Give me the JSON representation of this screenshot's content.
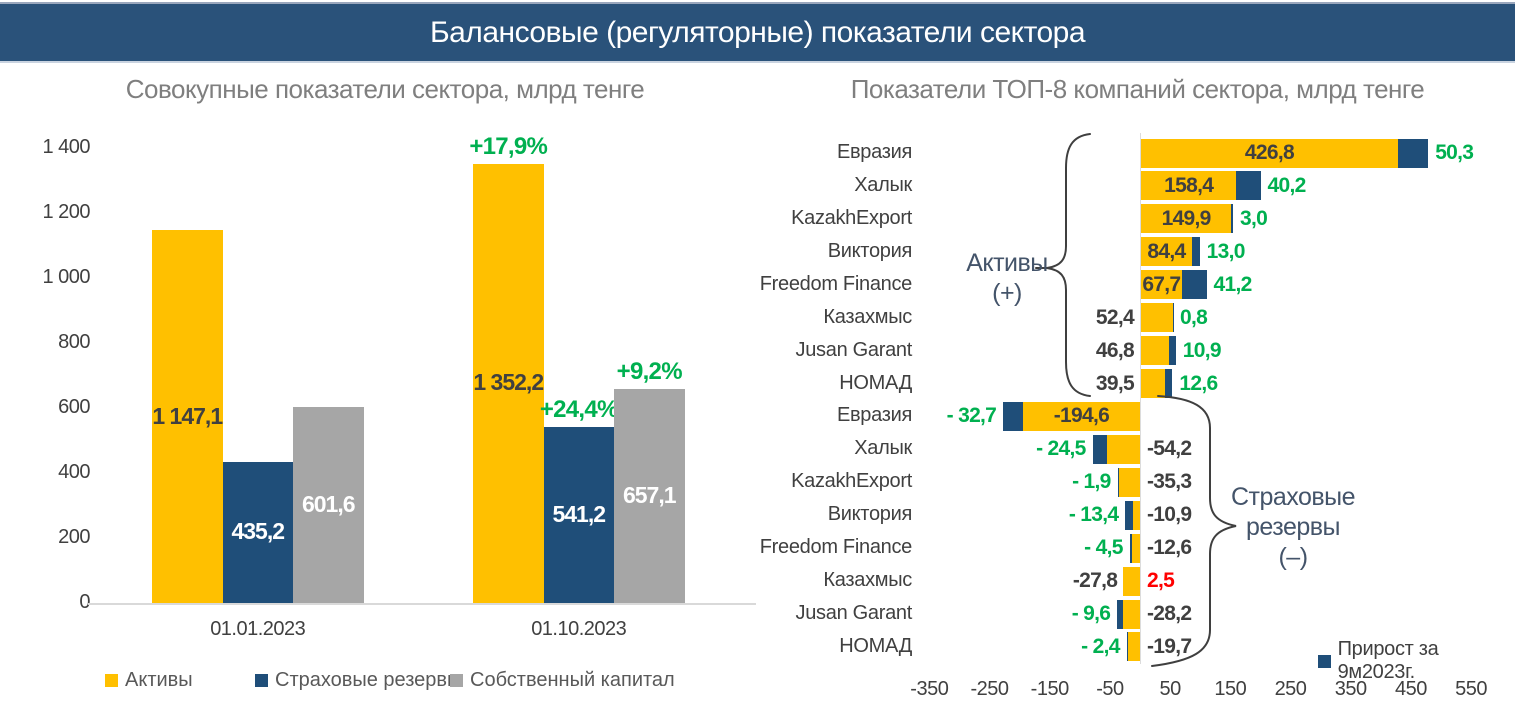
{
  "header": {
    "title": "Балансовые (регуляторные) показатели сектора"
  },
  "palette": {
    "yellow": "#FFC000",
    "blue": "#1F4E79",
    "gray": "#A6A6A6",
    "green": "#00B050",
    "red": "#FF0000",
    "dark": "#404040",
    "axis": "#D9D9D9",
    "subtitle": "#7F7F7F"
  },
  "chart_data": [
    {
      "type": "bar",
      "title": "Совокупные показатели сектора, млрд тенге",
      "categories": [
        "01.01.2023",
        "01.10.2023"
      ],
      "series": [
        {
          "name": "Активы",
          "color_key": "yellow",
          "values": [
            1147.1,
            1352.2
          ],
          "value_labels": [
            "1 147,1",
            "1 352,2"
          ],
          "growth_labels": [
            null,
            "+17,9%"
          ],
          "label_color": "#404040"
        },
        {
          "name": "Страховые резервы",
          "color_key": "blue",
          "values": [
            435.2,
            541.2
          ],
          "value_labels": [
            "435,2",
            "541,2"
          ],
          "growth_labels": [
            null,
            "+24,4%"
          ],
          "label_color": "#FFFFFF"
        },
        {
          "name": "Собственный капитал",
          "color_key": "gray",
          "values": [
            601.6,
            657.1
          ],
          "value_labels": [
            "601,6",
            "657,1"
          ],
          "growth_labels": [
            null,
            "+9,2%"
          ],
          "label_color": "#FFFFFF"
        }
      ],
      "ylim": [
        0,
        1400
      ],
      "yticks": [
        {
          "v": 0,
          "label": "0"
        },
        {
          "v": 200,
          "label": "200"
        },
        {
          "v": 400,
          "label": "400"
        },
        {
          "v": 600,
          "label": "600"
        },
        {
          "v": 800,
          "label": "800"
        },
        {
          "v": 1000,
          "label": "1 000"
        },
        {
          "v": 1200,
          "label": "1 200"
        },
        {
          "v": 1400,
          "label": "1 400"
        }
      ],
      "legend": [
        "Активы",
        "Страховые резервы",
        "Собственный капитал"
      ],
      "legend_position": "bottom",
      "grid": false
    },
    {
      "type": "bar-horizontal",
      "title": "Показатели ТОП-8 компаний сектора, млрд тенге",
      "xticks": [
        {
          "v": -350,
          "label": "-350"
        },
        {
          "v": -250,
          "label": "-250"
        },
        {
          "v": -150,
          "label": "-150"
        },
        {
          "v": -50,
          "label": "-50"
        },
        {
          "v": 50,
          "label": "50"
        },
        {
          "v": 150,
          "label": "150"
        },
        {
          "v": 250,
          "label": "250"
        },
        {
          "v": 350,
          "label": "350"
        },
        {
          "v": 450,
          "label": "450"
        },
        {
          "v": 550,
          "label": "550"
        }
      ],
      "legend_label": "Прирост за 9м2023г.",
      "side_labels": {
        "assets": [
          "Активы",
          "(+)"
        ],
        "reserves": [
          "Страховые",
          "резервы",
          "(–)"
        ]
      },
      "rows": [
        {
          "company": "Евразия",
          "value": 426.8,
          "growth": 50.3,
          "value_label": "426,8",
          "growth_label": "50,3",
          "value_placement": "inside"
        },
        {
          "company": "Халык",
          "value": 158.4,
          "growth": 40.2,
          "value_label": "158,4",
          "growth_label": "40,2",
          "value_placement": "inside"
        },
        {
          "company": "KazakhExport",
          "value": 149.9,
          "growth": 3.0,
          "value_label": "149,9",
          "growth_label": "3,0",
          "value_placement": "inside"
        },
        {
          "company": "Виктория",
          "value": 84.4,
          "growth": 13.0,
          "value_label": "84,4",
          "growth_label": "13,0",
          "value_placement": "inside"
        },
        {
          "company": "Freedom Finance",
          "value": 67.7,
          "growth": 41.2,
          "value_label": "67,7",
          "growth_label": "41,2",
          "value_placement": "inside"
        },
        {
          "company": "Казахмыс",
          "value": 52.4,
          "growth": 0.8,
          "value_label": "52,4",
          "growth_label": "0,8",
          "value_placement": "outside"
        },
        {
          "company": "Jusan Garant",
          "value": 46.8,
          "growth": 10.9,
          "value_label": "46,8",
          "growth_label": "10,9",
          "value_placement": "outside"
        },
        {
          "company": "НОМАД",
          "value": 39.5,
          "growth": 12.6,
          "value_label": "39,5",
          "growth_label": "12,6",
          "value_placement": "outside"
        },
        {
          "company": "Евразия",
          "value": -194.6,
          "growth": -32.7,
          "value_label": "-194,6",
          "growth_label": "- 32,7",
          "value_placement": "inside"
        },
        {
          "company": "Халык",
          "value": -54.2,
          "growth": -24.5,
          "value_label": "-54,2",
          "growth_label": "- 24,5",
          "value_placement": "outside"
        },
        {
          "company": "KazakhExport",
          "value": -35.3,
          "growth": -1.9,
          "value_label": "-35,3",
          "growth_label": "- 1,9",
          "value_placement": "outside"
        },
        {
          "company": "Виктория",
          "value": -10.9,
          "growth": -13.4,
          "value_label": "-10,9",
          "growth_label": "- 13,4",
          "value_placement": "outside"
        },
        {
          "company": "Freedom Finance",
          "value": -12.6,
          "growth": -4.5,
          "value_label": "-12,6",
          "growth_label": "- 4,5",
          "value_placement": "outside"
        },
        {
          "company": "Казахмыс",
          "value": -27.8,
          "growth": 2.5,
          "value_label": "-27,8",
          "growth_label": "2,5",
          "value_placement": "outside"
        },
        {
          "company": "Jusan Garant",
          "value": -28.2,
          "growth": -9.6,
          "value_label": "-28,2",
          "growth_label": "- 9,6",
          "value_placement": "outside"
        },
        {
          "company": "НОМАД",
          "value": -19.7,
          "growth": -2.4,
          "value_label": "-19,7",
          "growth_label": "- 2,4",
          "value_placement": "outside"
        }
      ]
    }
  ]
}
